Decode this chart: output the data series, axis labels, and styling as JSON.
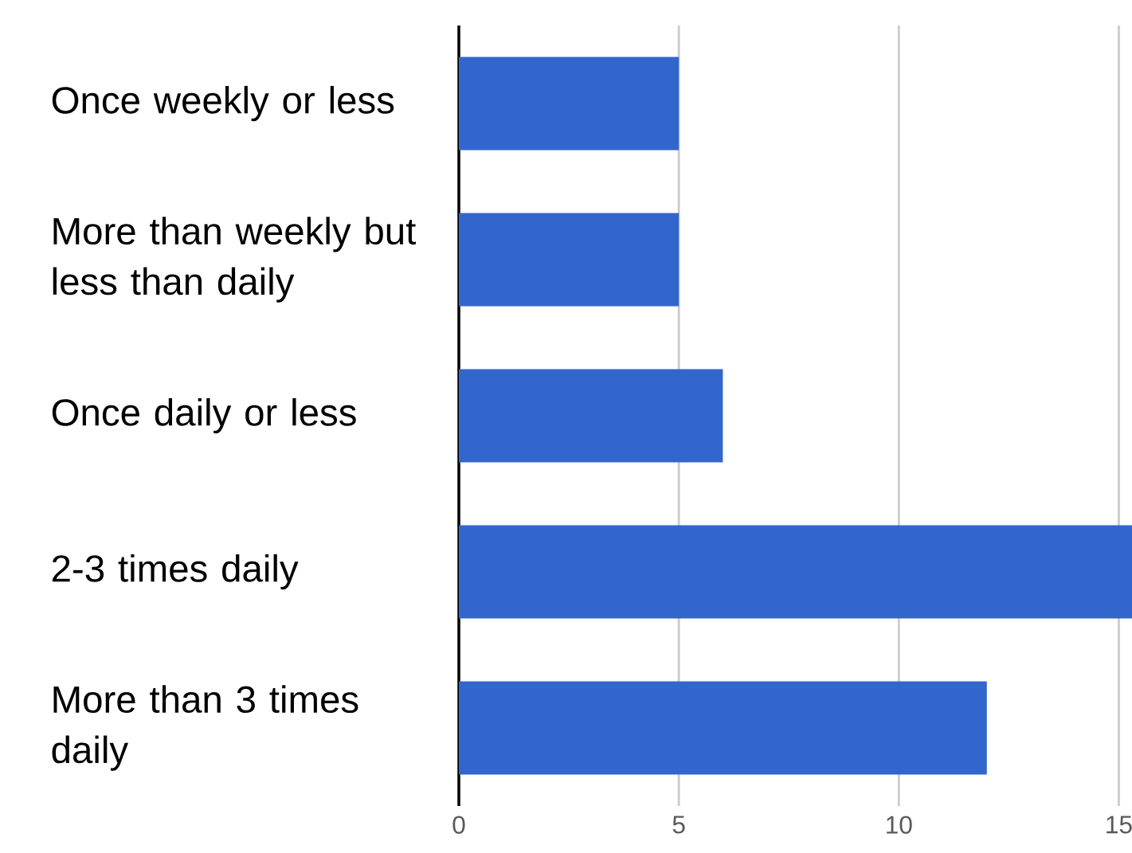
{
  "chart_data": {
    "type": "bar",
    "orientation": "horizontal",
    "categories": [
      "Once weekly or less",
      "More than weekly but less than daily",
      "Once daily or less",
      "2-3 times daily",
      "More than 3 times daily"
    ],
    "values": [
      5,
      5,
      6,
      15.3,
      12
    ],
    "color": "#3366cc",
    "xlim": [
      0,
      15.3
    ],
    "xticks": [
      0,
      5,
      10,
      15
    ],
    "grid": "x"
  }
}
